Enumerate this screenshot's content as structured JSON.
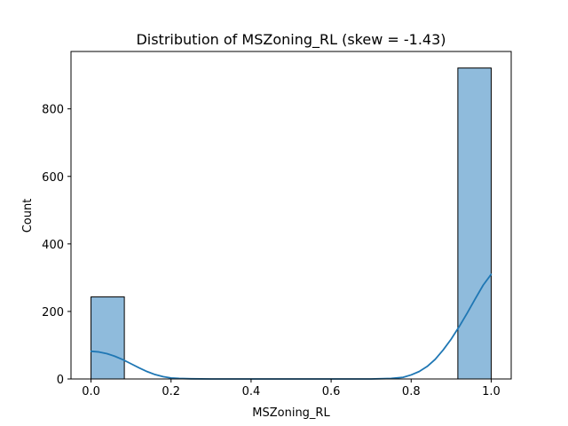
{
  "chart_data": {
    "type": "bar",
    "title": "Distribution of MSZoning_RL (skew = -1.43)",
    "xlabel": "MSZoning_RL",
    "ylabel": "Count",
    "xlim": [
      -0.05,
      1.05
    ],
    "ylim": [
      0,
      970
    ],
    "x_ticks": [
      0.0,
      0.2,
      0.4,
      0.6,
      0.8,
      1.0
    ],
    "x_tick_labels": [
      "0.0",
      "0.2",
      "0.4",
      "0.6",
      "0.8",
      "1.0"
    ],
    "y_ticks": [
      0,
      200,
      400,
      600,
      800
    ],
    "y_tick_labels": [
      "0",
      "200",
      "400",
      "600",
      "800"
    ],
    "grid": false,
    "bins": [
      {
        "x0": 0.0,
        "x1": 0.0833,
        "count": 243
      },
      {
        "x0": 0.9167,
        "x1": 1.0,
        "count": 921
      }
    ],
    "kde": [
      [
        0.0,
        82
      ],
      [
        0.02,
        80
      ],
      [
        0.04,
        75
      ],
      [
        0.06,
        67
      ],
      [
        0.08,
        57
      ],
      [
        0.1,
        45
      ],
      [
        0.12,
        33
      ],
      [
        0.14,
        22
      ],
      [
        0.16,
        13
      ],
      [
        0.18,
        7
      ],
      [
        0.2,
        3
      ],
      [
        0.22,
        1.5
      ],
      [
        0.25,
        0.5
      ],
      [
        0.3,
        0
      ],
      [
        0.7,
        0
      ],
      [
        0.75,
        1.5
      ],
      [
        0.78,
        5
      ],
      [
        0.8,
        12
      ],
      [
        0.82,
        22
      ],
      [
        0.84,
        37
      ],
      [
        0.86,
        58
      ],
      [
        0.88,
        86
      ],
      [
        0.9,
        118
      ],
      [
        0.92,
        155
      ],
      [
        0.94,
        195
      ],
      [
        0.96,
        237
      ],
      [
        0.98,
        278
      ],
      [
        1.0,
        310
      ]
    ],
    "colors": {
      "bar_fill": "#8fbbdc",
      "bar_edge": "#000000",
      "kde_line": "#1f77b4"
    }
  }
}
